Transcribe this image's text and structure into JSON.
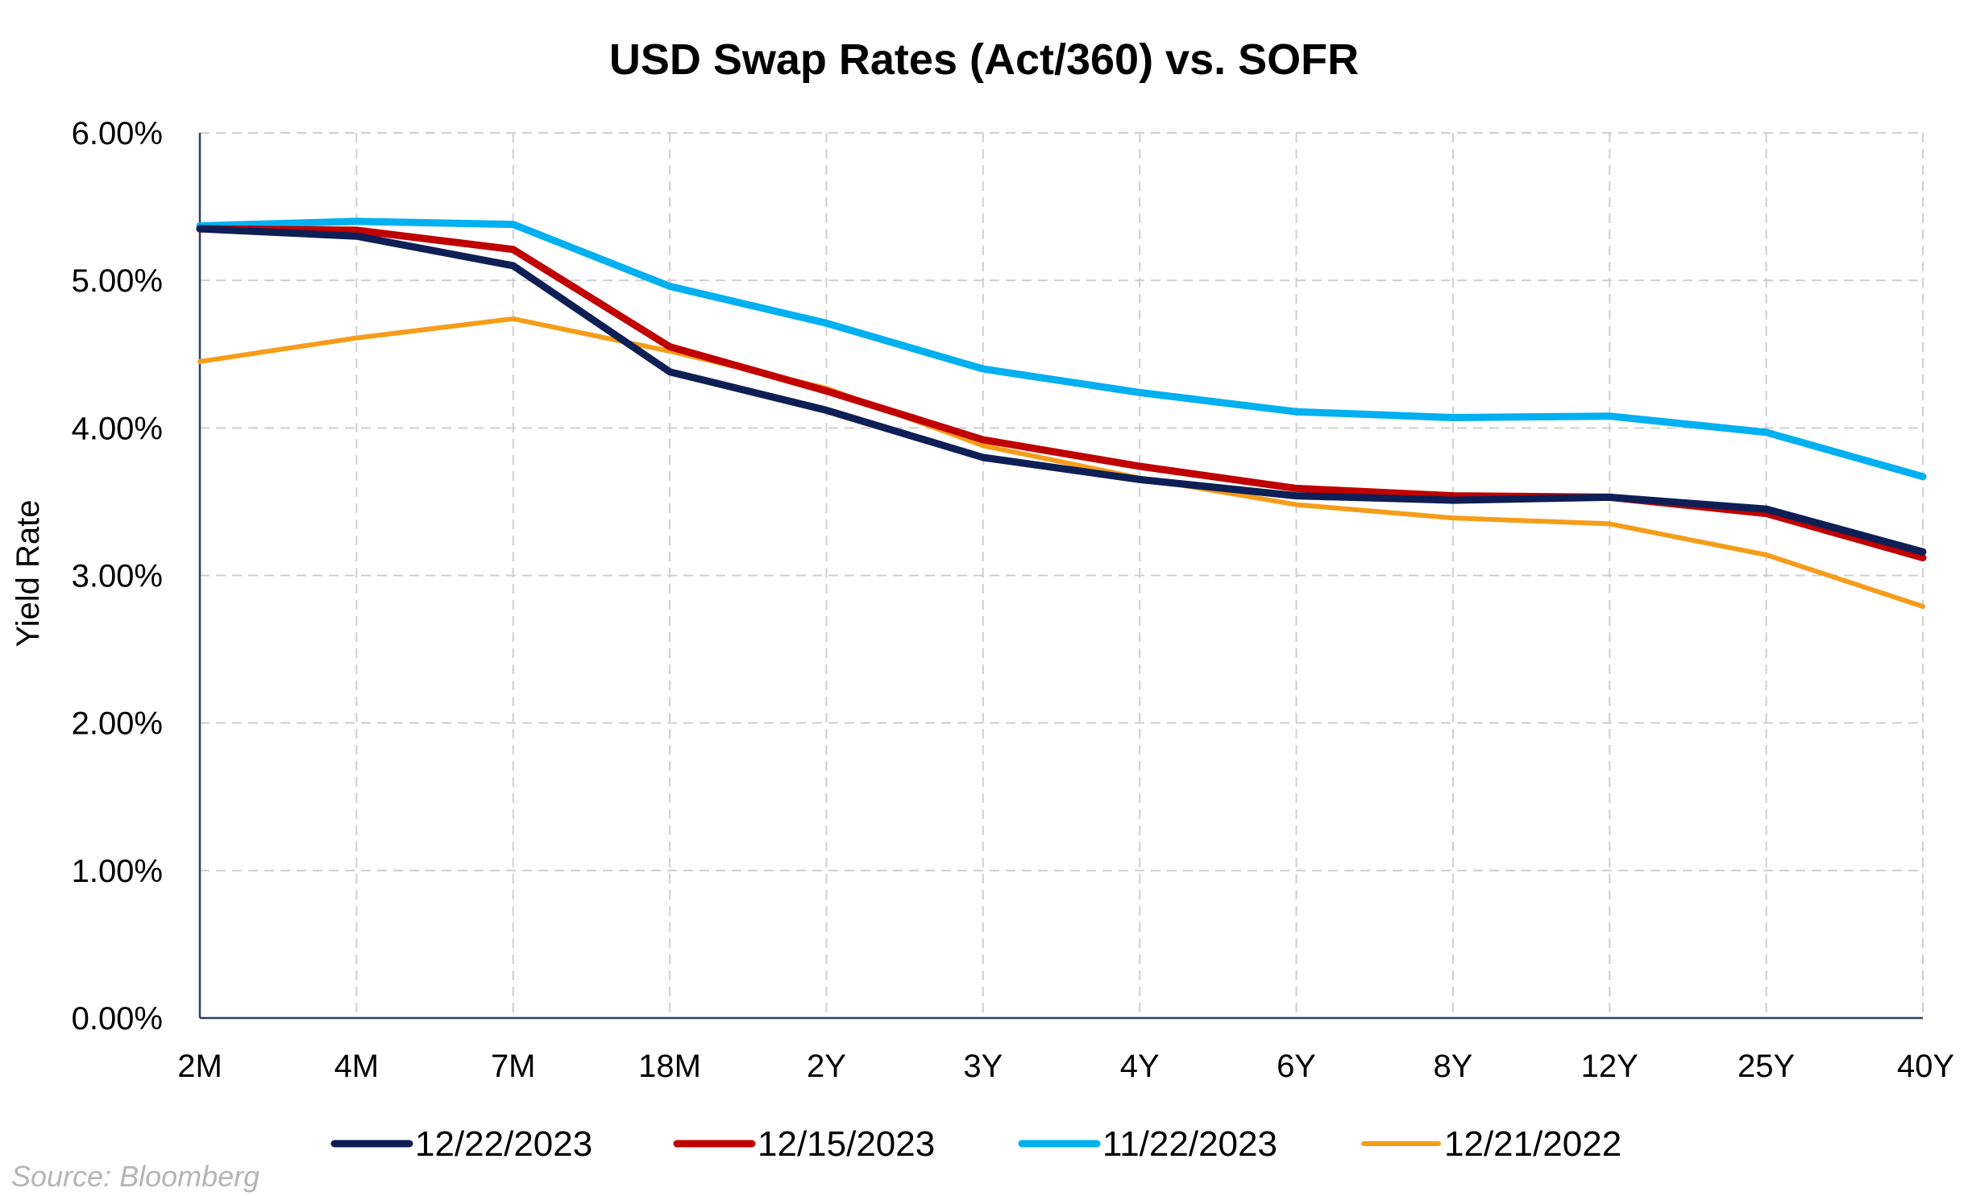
{
  "chart_data": {
    "type": "line",
    "title": "USD Swap Rates (Act/360) vs. SOFR",
    "xlabel": "",
    "ylabel": "Yield Rate",
    "ylim": [
      0,
      6
    ],
    "yticks": [
      "0.00%",
      "1.00%",
      "2.00%",
      "3.00%",
      "4.00%",
      "5.00%",
      "6.00%"
    ],
    "categories": [
      "2M",
      "4M",
      "7M",
      "18M",
      "2Y",
      "3Y",
      "4Y",
      "6Y",
      "8Y",
      "12Y",
      "25Y",
      "40Y"
    ],
    "grid": true,
    "legend_position": "bottom",
    "series": [
      {
        "name": "12/22/2023",
        "color": "#0e1f56",
        "values": [
          5.35,
          5.3,
          5.1,
          4.38,
          4.12,
          3.8,
          3.65,
          3.54,
          3.51,
          3.53,
          3.45,
          3.16
        ]
      },
      {
        "name": "12/15/2023",
        "color": "#c00000",
        "values": [
          5.35,
          5.34,
          5.21,
          4.55,
          4.25,
          3.92,
          3.74,
          3.59,
          3.54,
          3.53,
          3.42,
          3.12
        ]
      },
      {
        "name": "11/22/2023",
        "color": "#00b0f0",
        "values": [
          5.37,
          5.4,
          5.38,
          4.96,
          4.71,
          4.4,
          4.24,
          4.11,
          4.07,
          4.08,
          3.97,
          3.67
        ]
      },
      {
        "name": "12/21/2022",
        "color": "#f59d1a",
        "values": [
          4.45,
          4.61,
          4.74,
          4.52,
          4.27,
          3.88,
          3.66,
          3.48,
          3.39,
          3.35,
          3.14,
          2.79
        ]
      }
    ]
  },
  "source": "Source: Bloomberg"
}
